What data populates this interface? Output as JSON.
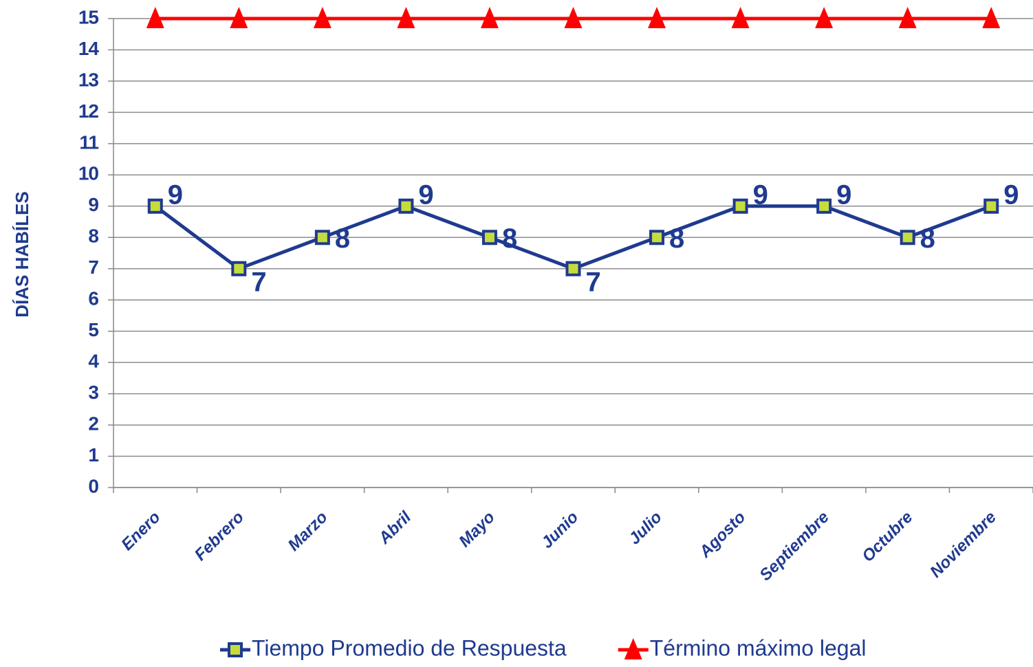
{
  "chart_data": {
    "type": "line",
    "ylabel": "DÍAS HABÍLES",
    "categories": [
      "Enero",
      "Febrero",
      "Marzo",
      "Abril",
      "Mayo",
      "Junio",
      "Julio",
      "Agosto",
      "Septiembre",
      "Octubre",
      "Noviembre"
    ],
    "series": [
      {
        "name": "Tiempo Promedio de Respuesta",
        "color": "#1f3a8f",
        "marker": "square",
        "marker_fill": "#c6dc3c",
        "data_labels": true,
        "values": [
          9,
          7,
          8,
          9,
          8,
          7,
          8,
          9,
          9,
          8,
          9
        ]
      },
      {
        "name": "Término máximo legal",
        "color": "#ff0000",
        "marker": "triangle",
        "values": [
          15,
          15,
          15,
          15,
          15,
          15,
          15,
          15,
          15,
          15,
          15
        ]
      }
    ],
    "ylim": [
      0,
      15
    ],
    "yticks": [
      0,
      1,
      2,
      3,
      4,
      5,
      6,
      7,
      8,
      9,
      10,
      11,
      12,
      13,
      14,
      15
    ],
    "grid": true,
    "legend": "bottom"
  }
}
